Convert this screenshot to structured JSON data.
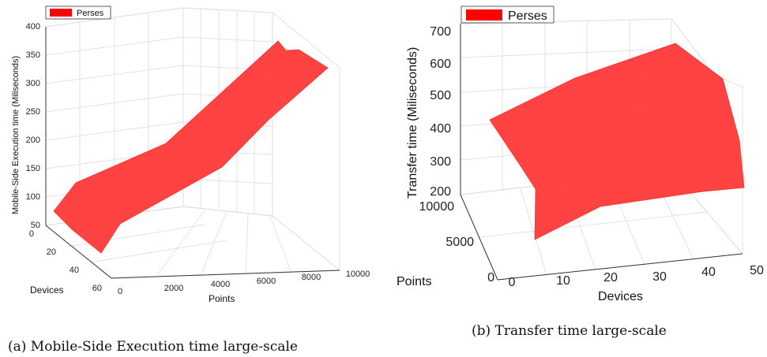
{
  "chart_data": [
    {
      "id": "a",
      "type": "surface",
      "caption": "(a) Mobile-Side Execution time large-scale",
      "legend": [
        "Perses"
      ],
      "legend_position": "top-left",
      "zlabel": "Mobile-Side Execution time (Miliseconds)",
      "xlabel": "Points",
      "ylabel": "Devices",
      "zlim": [
        50,
        400
      ],
      "zticks": [
        "50",
        "100",
        "150",
        "200",
        "250",
        "300",
        "350",
        "400"
      ],
      "xlim": [
        0,
        10000
      ],
      "xticks": [
        "0",
        "2000",
        "4000",
        "6000",
        "8000",
        "10000"
      ],
      "ylim": [
        0,
        60
      ],
      "yticks": [
        "0",
        "20",
        "40",
        "60"
      ],
      "grid": true,
      "colors": {
        "surface": "#ff3b3b",
        "legend": "#ff0000",
        "grid": "#e2e2e2"
      },
      "surface_outline": [
        {
          "points": 0,
          "devices": 5,
          "z": 75
        },
        {
          "points": 500,
          "devices": 0,
          "z": 90
        },
        {
          "points": 2500,
          "devices": 0,
          "z": 195
        },
        {
          "points": 7300,
          "devices": 0,
          "z": 380
        },
        {
          "points": 8500,
          "devices": 0,
          "z": 383
        },
        {
          "points": 10000,
          "devices": 0,
          "z": 390
        },
        {
          "points": 8000,
          "devices": 30,
          "z": 270
        },
        {
          "points": 6000,
          "devices": 60,
          "z": 160
        },
        {
          "points": 2500,
          "devices": 60,
          "z": 65
        },
        {
          "points": 500,
          "devices": 60,
          "z": 55
        },
        {
          "points": 0,
          "devices": 40,
          "z": 60
        }
      ]
    },
    {
      "id": "b",
      "type": "surface",
      "caption": "(b) Transfer time large-scale",
      "legend": [
        "Perses"
      ],
      "legend_position": "top-left",
      "zlabel": "Transfer time (Miliseconds)",
      "xlabel": "Devices",
      "ylabel": "Points",
      "zlim": [
        200,
        700
      ],
      "zticks": [
        "200",
        "300",
        "400",
        "500",
        "600",
        "700"
      ],
      "xlim": [
        0,
        50
      ],
      "xticks": [
        "0",
        "10",
        "20",
        "30",
        "40",
        "50"
      ],
      "ylim": [
        0,
        10000
      ],
      "yticks": [
        "0",
        "5000",
        "10000"
      ],
      "grid": true,
      "colors": {
        "surface": "#ff3b3b",
        "legend": "#ff0000",
        "grid": "#e2e2e2"
      },
      "surface_outline": [
        {
          "devices": 0,
          "points": 10000,
          "z": 420
        },
        {
          "devices": 10,
          "points": 10000,
          "z": 560
        },
        {
          "devices": 20,
          "points": 10000,
          "z": 610
        },
        {
          "devices": 30,
          "points": 10000,
          "z": 640
        },
        {
          "devices": 40,
          "points": 10000,
          "z": 660
        },
        {
          "devices": 50,
          "points": 10000,
          "z": 680
        },
        {
          "devices": 50,
          "points": 8000,
          "z": 560
        },
        {
          "devices": 50,
          "points": 5000,
          "z": 420
        },
        {
          "devices": 50,
          "points": 0,
          "z": 240
        },
        {
          "devices": 40,
          "points": 0,
          "z": 230
        },
        {
          "devices": 30,
          "points": 0,
          "z": 225
        },
        {
          "devices": 20,
          "points": 0,
          "z": 215
        },
        {
          "devices": 10,
          "points": 0,
          "z": 205
        },
        {
          "devices": 5,
          "points": 0,
          "z": 200
        },
        {
          "devices": 3,
          "points": 3000,
          "z": 330
        },
        {
          "devices": 0,
          "points": 6000,
          "z": 370
        }
      ]
    }
  ]
}
